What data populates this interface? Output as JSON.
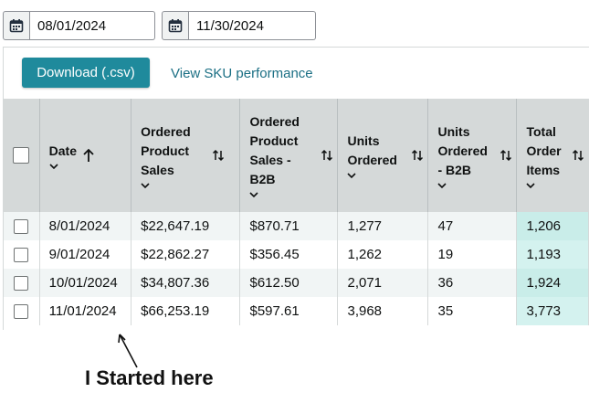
{
  "date_range": {
    "start": "08/01/2024",
    "end": "11/30/2024",
    "icon": "calendar-icon"
  },
  "toolbar": {
    "download_label": "Download (.csv)",
    "sku_link_label": "View SKU performance",
    "accent_color": "#1f8a9c"
  },
  "table": {
    "columns": [
      {
        "label": "Date",
        "sort": "ascending"
      },
      {
        "label": "Ordered Product Sales",
        "sort": "none"
      },
      {
        "label": "Ordered Product Sales - B2B",
        "sort": "none"
      },
      {
        "label": "Units Ordered",
        "sort": "none"
      },
      {
        "label": "Units Ordered - B2B",
        "sort": "none"
      },
      {
        "label": "Total Order Items",
        "sort": "none"
      }
    ],
    "rows": [
      [
        "8/01/2024",
        "$22,647.19",
        "$870.71",
        "1,277",
        "47",
        "1,206"
      ],
      [
        "9/01/2024",
        "$22,862.27",
        "$356.45",
        "1,262",
        "19",
        "1,193"
      ],
      [
        "10/01/2024",
        "$34,807.36",
        "$612.50",
        "2,071",
        "36",
        "1,924"
      ],
      [
        "11/01/2024",
        "$66,253.19",
        "$597.61",
        "3,968",
        "35",
        "3,773"
      ]
    ],
    "highlight_color": "#c9ede9"
  },
  "annotation": {
    "text": "I Started here"
  }
}
